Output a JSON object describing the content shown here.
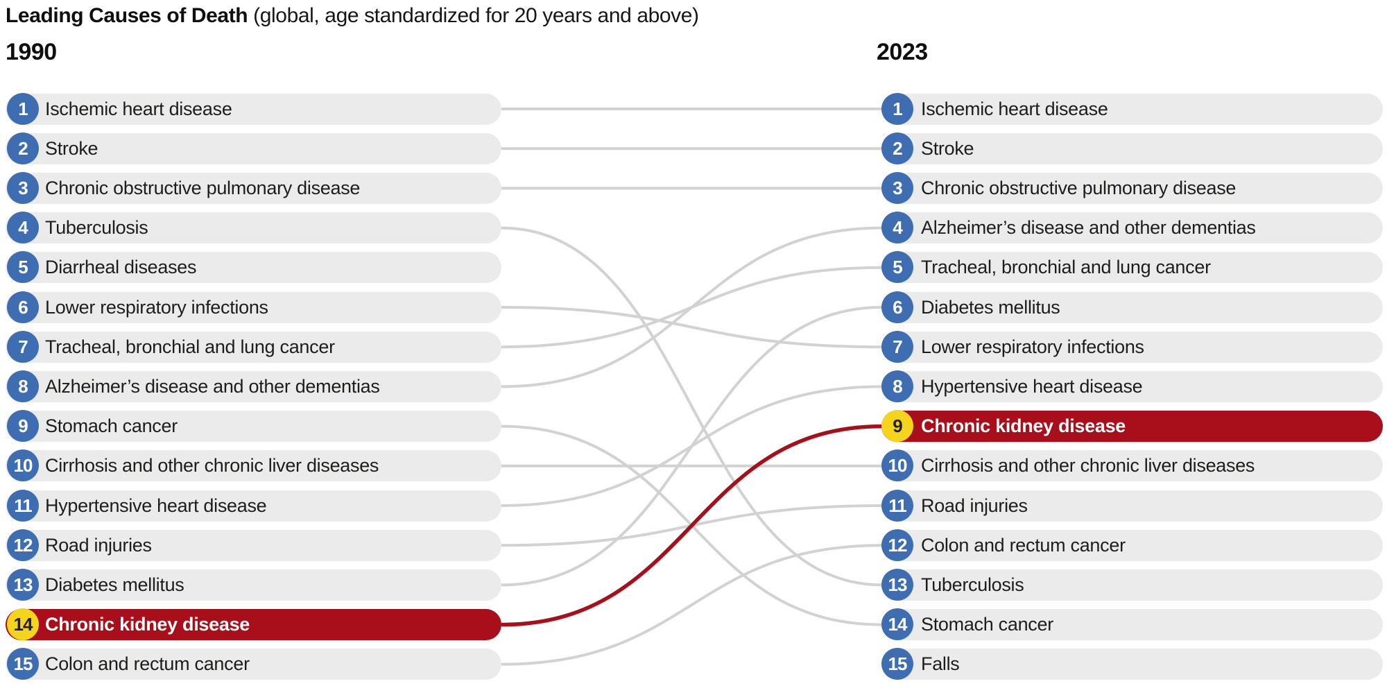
{
  "title": {
    "bold": "Leading Causes of Death",
    "subtitle": " (global, age standardized for 20 years and above)"
  },
  "chart_data": {
    "type": "bump",
    "title": "Leading Causes of Death",
    "subtitle": "(global, age standardized for 20 years and above)",
    "legend_position": "none",
    "grid": false,
    "columns": [
      {
        "year": "1990",
        "items": [
          {
            "rank": "1",
            "label": "Ischemic heart disease",
            "highlight": false
          },
          {
            "rank": "2",
            "label": "Stroke",
            "highlight": false
          },
          {
            "rank": "3",
            "label": "Chronic obstructive pulmonary disease",
            "highlight": false
          },
          {
            "rank": "4",
            "label": "Tuberculosis",
            "highlight": false
          },
          {
            "rank": "5",
            "label": "Diarrheal diseases",
            "highlight": false
          },
          {
            "rank": "6",
            "label": "Lower respiratory infections",
            "highlight": false
          },
          {
            "rank": "7",
            "label": "Tracheal, bronchial and lung cancer",
            "highlight": false
          },
          {
            "rank": "8",
            "label": "Alzheimer’s disease and other dementias",
            "highlight": false
          },
          {
            "rank": "9",
            "label": "Stomach cancer",
            "highlight": false
          },
          {
            "rank": "10",
            "label": "Cirrhosis and other chronic liver diseases",
            "highlight": false
          },
          {
            "rank": "11",
            "label": "Hypertensive heart disease",
            "highlight": false
          },
          {
            "rank": "12",
            "label": "Road injuries",
            "highlight": false
          },
          {
            "rank": "13",
            "label": "Diabetes mellitus",
            "highlight": false
          },
          {
            "rank": "14",
            "label": "Chronic kidney disease",
            "highlight": true
          },
          {
            "rank": "15",
            "label": "Colon and rectum cancer",
            "highlight": false
          }
        ]
      },
      {
        "year": "2023",
        "items": [
          {
            "rank": "1",
            "label": "Ischemic heart disease",
            "highlight": false
          },
          {
            "rank": "2",
            "label": "Stroke",
            "highlight": false
          },
          {
            "rank": "3",
            "label": "Chronic obstructive pulmonary disease",
            "highlight": false
          },
          {
            "rank": "4",
            "label": "Alzheimer’s disease and other dementias",
            "highlight": false
          },
          {
            "rank": "5",
            "label": "Tracheal, bronchial and lung cancer",
            "highlight": false
          },
          {
            "rank": "6",
            "label": "Diabetes mellitus",
            "highlight": false
          },
          {
            "rank": "7",
            "label": "Lower respiratory infections",
            "highlight": false
          },
          {
            "rank": "8",
            "label": "Hypertensive heart disease",
            "highlight": false
          },
          {
            "rank": "9",
            "label": "Chronic kidney disease",
            "highlight": true
          },
          {
            "rank": "10",
            "label": "Cirrhosis and other chronic liver diseases",
            "highlight": false
          },
          {
            "rank": "11",
            "label": "Road injuries",
            "highlight": false
          },
          {
            "rank": "12",
            "label": "Colon and rectum cancer",
            "highlight": false
          },
          {
            "rank": "13",
            "label": "Tuberculosis",
            "highlight": false
          },
          {
            "rank": "14",
            "label": "Stomach cancer",
            "highlight": false
          },
          {
            "rank": "15",
            "label": "Falls",
            "highlight": false
          }
        ]
      }
    ],
    "links": [
      {
        "from": 1,
        "to": 1,
        "highlight": false
      },
      {
        "from": 2,
        "to": 2,
        "highlight": false
      },
      {
        "from": 3,
        "to": 3,
        "highlight": false
      },
      {
        "from": 4,
        "to": 13,
        "highlight": false
      },
      {
        "from": 6,
        "to": 7,
        "highlight": false
      },
      {
        "from": 7,
        "to": 5,
        "highlight": false
      },
      {
        "from": 8,
        "to": 4,
        "highlight": false
      },
      {
        "from": 9,
        "to": 14,
        "highlight": false
      },
      {
        "from": 10,
        "to": 10,
        "highlight": false
      },
      {
        "from": 11,
        "to": 8,
        "highlight": false
      },
      {
        "from": 12,
        "to": 11,
        "highlight": false
      },
      {
        "from": 13,
        "to": 6,
        "highlight": false
      },
      {
        "from": 15,
        "to": 12,
        "highlight": false
      },
      {
        "from": 14,
        "to": 9,
        "highlight": true
      }
    ],
    "unlinked": {
      "left_only": [
        "Diarrheal diseases"
      ],
      "right_only": [
        "Falls"
      ]
    },
    "colors": {
      "pill": "#ebebeb",
      "badge": "#3e6eb1",
      "badge_text": "#ffffff",
      "line": "#d2d2d2",
      "text": "#1d1d1b",
      "highlight_pill": "#a80f1a",
      "highlight_line": "#a80f1a",
      "highlight_badge": "#f5d41c",
      "highlight_badge_text": "#231f20",
      "highlight_text": "#ffffff"
    }
  }
}
